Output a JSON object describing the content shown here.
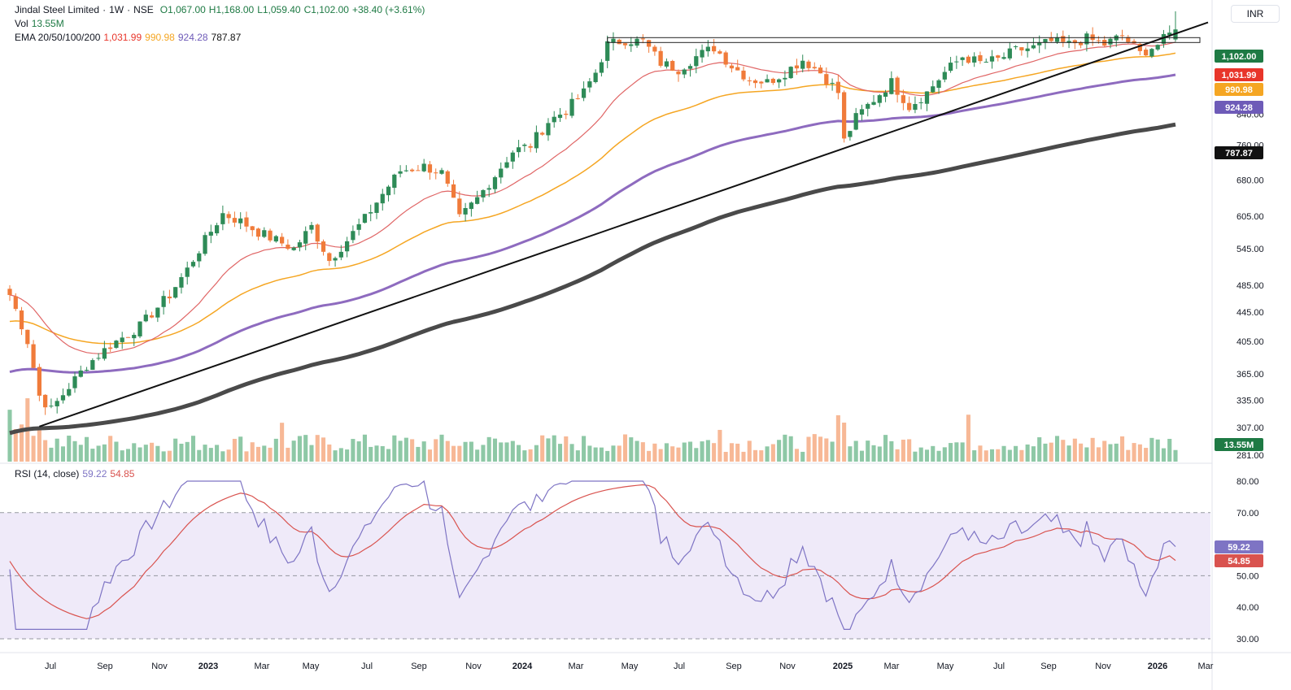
{
  "legend": {
    "title": "Jindal Steel Limited",
    "sep1": "·",
    "interval": "1W",
    "sep2": "·",
    "exchange": "NSE",
    "open": "O1,067.00",
    "high": "H1,168.00",
    "low": "L1,059.40",
    "close": "C1,102.00",
    "change": "+38.40 (+3.61%)",
    "vol_label": "Vol",
    "vol_value": "13.55M",
    "ema_label": "EMA 20/50/100/200",
    "ema20": "1,031.99",
    "ema50": "990.98",
    "ema100": "924.28",
    "ema200": "787.87",
    "rsi_label": "RSI (14, close)",
    "rsi_value": "59.22",
    "rsi_ma_value": "54.85"
  },
  "currency": "INR",
  "colors": {
    "up": "#2e8b57",
    "down": "#f07b3a",
    "ema20": "#e06666",
    "ema50": "#f5a623",
    "ema100": "#8e6bbf",
    "ema200": "#4a4a4a",
    "rsi": "#7e74c4",
    "rsi_ma": "#d9534f",
    "rsi_band": "#efeaf9",
    "badge_price": "#1e7a44",
    "badge_ema20": "#e8352a",
    "badge_ema50": "#f5a623",
    "badge_ema100": "#6e5bb8",
    "badge_ema200": "#111111",
    "badge_vol": "#1e7a44"
  },
  "chart_data": [
    {
      "type": "candlestick",
      "title": "Jindal Steel Limited · 1W · NSE",
      "scale": "log",
      "ylim": [
        281,
        1180
      ],
      "price_ticks": [
        "840.00",
        "760.00",
        "680.00",
        "605.00",
        "545.00",
        "485.00",
        "445.00",
        "405.00",
        "365.00",
        "335.00",
        "307.00",
        "281.00"
      ],
      "x_ticks": [
        "Jul",
        "Sep",
        "Nov",
        "2023",
        "Mar",
        "May",
        "Jul",
        "Sep",
        "Nov",
        "2024",
        "Mar",
        "May",
        "Jul",
        "Sep",
        "Nov",
        "2025",
        "Mar",
        "May",
        "Jul",
        "Sep",
        "Nov",
        "2026",
        "Mar"
      ],
      "last_bar": {
        "open": 1067.0,
        "high": 1168.0,
        "low": 1059.4,
        "close": 1102.0
      },
      "last_values": {
        "price": "1,102.00",
        "ema20": "1,031.99",
        "ema50": "990.98",
        "ema100": "924.28",
        "ema200": "787.87",
        "volume": "13.55M"
      },
      "anchor_closes": [
        [
          0,
          470
        ],
        [
          3,
          405
        ],
        [
          5,
          340
        ],
        [
          7,
          325
        ],
        [
          10,
          350
        ],
        [
          13,
          375
        ],
        [
          17,
          400
        ],
        [
          22,
          425
        ],
        [
          27,
          470
        ],
        [
          30,
          510
        ],
        [
          33,
          560
        ],
        [
          36,
          610
        ],
        [
          39,
          595
        ],
        [
          42,
          575
        ],
        [
          45,
          560
        ],
        [
          48,
          545
        ],
        [
          51,
          585
        ],
        [
          54,
          525
        ],
        [
          57,
          560
        ],
        [
          60,
          600
        ],
        [
          63,
          650
        ],
        [
          66,
          700
        ],
        [
          70,
          710
        ],
        [
          73,
          695
        ],
        [
          76,
          600
        ],
        [
          79,
          640
        ],
        [
          82,
          690
        ],
        [
          85,
          745
        ],
        [
          88,
          760
        ],
        [
          91,
          820
        ],
        [
          94,
          850
        ],
        [
          97,
          900
        ],
        [
          99,
          960
        ],
        [
          101,
          1050
        ],
        [
          104,
          1065
        ],
        [
          107,
          1060
        ],
        [
          110,
          990
        ],
        [
          113,
          970
        ],
        [
          116,
          1010
        ],
        [
          119,
          1040
        ],
        [
          122,
          980
        ],
        [
          125,
          940
        ],
        [
          128,
          930
        ],
        [
          131,
          960
        ],
        [
          134,
          1000
        ],
        [
          137,
          960
        ],
        [
          140,
          900
        ],
        [
          141,
          770
        ],
        [
          143,
          830
        ],
        [
          146,
          880
        ],
        [
          149,
          930
        ],
        [
          152,
          860
        ],
        [
          155,
          900
        ],
        [
          158,
          960
        ],
        [
          161,
          1010
        ],
        [
          164,
          990
        ],
        [
          167,
          1000
        ],
        [
          170,
          1030
        ],
        [
          173,
          1040
        ],
        [
          176,
          1060
        ],
        [
          179,
          1050
        ],
        [
          182,
          1070
        ],
        [
          185,
          1050
        ],
        [
          188,
          1080
        ],
        [
          191,
          1020
        ],
        [
          194,
          1050
        ],
        [
          197,
          1102
        ]
      ],
      "resistance_level": 1065,
      "trendline": [
        {
          "week": 5,
          "value": 308
        },
        {
          "week": 197,
          "value": 1098
        }
      ]
    },
    {
      "type": "line",
      "title": "RSI (14, close)",
      "ylim": [
        30,
        80
      ],
      "ticks": [
        "80.00",
        "70.00",
        "50.00",
        "40.00",
        "30.00"
      ],
      "levels": [
        70,
        50,
        30
      ],
      "last_values": {
        "rsi": "59.22",
        "rsi_ma": "54.85"
      }
    }
  ]
}
